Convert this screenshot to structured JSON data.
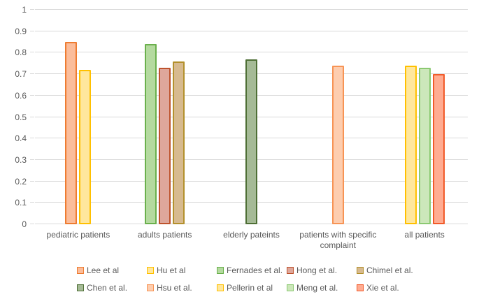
{
  "chart_data": {
    "type": "bar",
    "title": "",
    "xlabel": "",
    "ylabel": "",
    "categories": [
      "pediatric patients",
      "adults patients",
      "elderly pateints",
      "patients with specific complaint",
      "all patients"
    ],
    "series": [
      {
        "name": "Lee et al",
        "fill": "#FBBD9B",
        "border": "#EE7C31",
        "values": [
          0.85,
          null,
          null,
          null,
          null
        ]
      },
      {
        "name": "Hu et al",
        "fill": "#FFE79D",
        "border": "#FFC000",
        "values": [
          0.72,
          null,
          null,
          null,
          null
        ]
      },
      {
        "name": "Fernades et al.",
        "fill": "#B4DA9F",
        "border": "#6AB04C",
        "values": [
          null,
          0.84,
          null,
          null,
          null
        ]
      },
      {
        "name": "Hong et al.",
        "fill": "#DEA79B",
        "border": "#BE532D",
        "values": [
          null,
          0.73,
          null,
          null,
          null
        ]
      },
      {
        "name": "Chimel et al.",
        "fill": "#D7BA8F",
        "border": "#B3902C",
        "values": [
          null,
          0.76,
          null,
          null,
          null
        ]
      },
      {
        "name": "Chen et al.",
        "fill": "#A5BA96",
        "border": "#4E6F35",
        "values": [
          null,
          null,
          0.77,
          null,
          null
        ]
      },
      {
        "name": "Hsu et al.",
        "fill": "#FDCDAF",
        "border": "#F79455",
        "values": [
          null,
          null,
          null,
          0.74,
          null
        ]
      },
      {
        "name": "Pellerin et al",
        "fill": "#FFE79D",
        "border": "#FFC000",
        "values": [
          null,
          null,
          null,
          null,
          0.74
        ]
      },
      {
        "name": "Meng et al.",
        "fill": "#CCE7BA",
        "border": "#8BC971",
        "values": [
          null,
          null,
          null,
          null,
          0.73
        ]
      },
      {
        "name": "Xie et al.",
        "fill": "#FFAC92",
        "border": "#F15A29",
        "values": [
          null,
          null,
          null,
          null,
          0.7
        ]
      }
    ],
    "y_ticks": [
      "0",
      "0.1",
      "0.2",
      "0.3",
      "0.4",
      "0.5",
      "0.6",
      "0.7",
      "0.8",
      "0.9",
      "1"
    ],
    "ylim": [
      0,
      1
    ],
    "grid": true,
    "legend_position": "bottom",
    "legend_rows": 2,
    "colors": {
      "axis_text": "#595959",
      "gridline": "#D9D9D9",
      "background": "#FFFFFF"
    }
  }
}
